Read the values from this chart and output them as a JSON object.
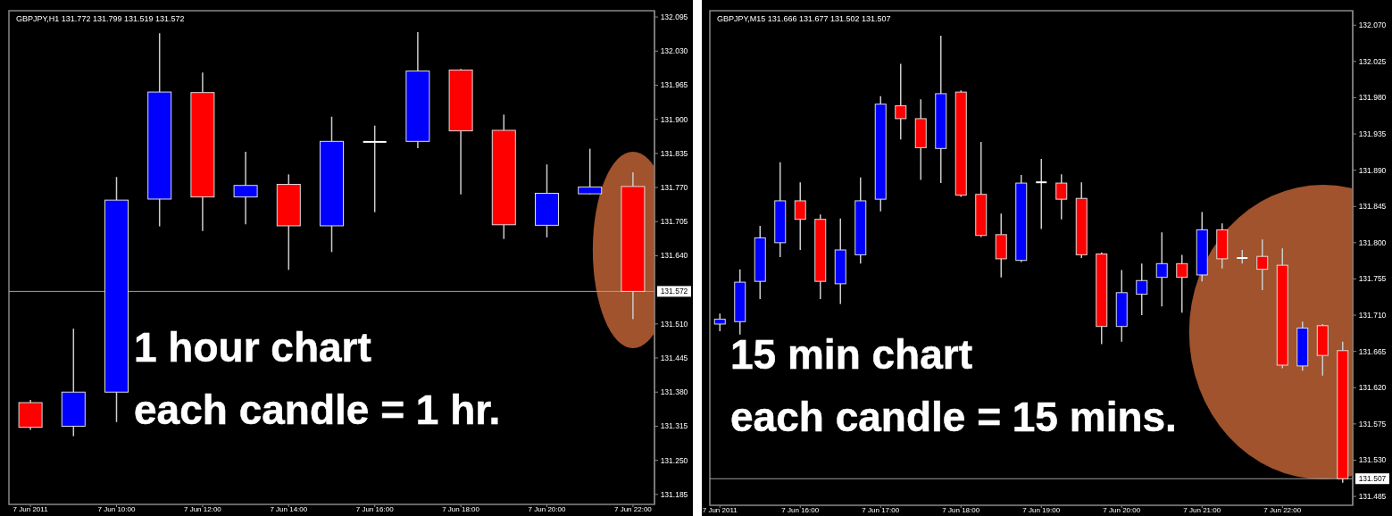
{
  "chart_data": [
    {
      "type": "candlestick",
      "title": "GBPJPY,H1 131.772 131.799 131.519 131.572",
      "categories": [
        "7 Jun 2011",
        null,
        "7 Jun 10:00",
        null,
        "7 Jun 12:00",
        null,
        "7 Jun 14:00",
        null,
        "7 Jun 16:00",
        null,
        "7 Jun 18:00",
        null,
        "7 Jun 20:00",
        null,
        "7 Jun 22:00"
      ],
      "ohlc": [
        [
          131.36,
          131.365,
          131.308,
          131.313
        ],
        [
          131.315,
          131.501,
          131.296,
          131.38
        ],
        [
          131.38,
          131.79,
          131.323,
          131.746
        ],
        [
          131.748,
          132.064,
          131.696,
          131.952
        ],
        [
          131.951,
          131.989,
          131.687,
          131.752
        ],
        [
          131.752,
          131.838,
          131.7,
          131.774
        ],
        [
          131.776,
          131.795,
          131.613,
          131.697
        ],
        [
          131.697,
          131.905,
          131.647,
          131.858
        ],
        [
          131.857,
          131.888,
          131.723,
          131.857
        ],
        [
          131.858,
          132.066,
          131.845,
          131.992
        ],
        [
          131.994,
          131.996,
          131.757,
          131.878
        ],
        [
          131.879,
          131.909,
          131.672,
          131.699
        ],
        [
          131.698,
          131.814,
          131.675,
          131.759
        ],
        [
          131.758,
          131.844,
          131.757,
          131.771
        ],
        [
          131.772,
          131.799,
          131.519,
          131.572
        ]
      ],
      "colors": [
        "#ff0000",
        "#0000ff",
        "#0000ff",
        "#0000ff",
        "#ff0000",
        "#0000ff",
        "#ff0000",
        "#0000ff",
        "#ffffff",
        "#0000ff",
        "#ff0000",
        "#ff0000",
        "#0000ff",
        "#0000ff",
        "#ff0000"
      ],
      "ylim": [
        131.166,
        132.107
      ],
      "yticks": [
        {
          "value": 132.095,
          "label": "132.095"
        },
        {
          "value": 132.03,
          "label": "132.030"
        },
        {
          "value": 131.965,
          "label": "131.965"
        },
        {
          "value": 131.9,
          "label": "131.900"
        },
        {
          "value": 131.835,
          "label": "131.835"
        },
        {
          "value": 131.77,
          "label": "131.770"
        },
        {
          "value": 131.705,
          "label": "131.705"
        },
        {
          "value": 131.64,
          "label": "131.640"
        },
        {
          "value": 131.51,
          "label": "131.510"
        },
        {
          "value": 131.445,
          "label": "131.445"
        },
        {
          "value": 131.38,
          "label": "131.380"
        },
        {
          "value": 131.315,
          "label": "131.315"
        },
        {
          "value": 131.25,
          "label": "131.250"
        },
        {
          "value": 131.185,
          "label": "131.185"
        }
      ],
      "ref_lines": [
        {
          "axis": "y",
          "value": 131.572,
          "label": "131.572",
          "color": "#a0a0a0"
        }
      ],
      "annotations": [
        "1 hour chart",
        "each candle = 1 hr."
      ]
    },
    {
      "type": "candlestick",
      "title": "GBPJPY,M15 131.666 131.677 131.502 131.507",
      "categories": [
        "7 Jun 2011",
        null,
        null,
        null,
        "7 Jun 16:00",
        null,
        null,
        null,
        "7 Jun 17:00",
        null,
        null,
        null,
        "7 Jun 18:00",
        null,
        null,
        null,
        "7 Jun 19:00",
        null,
        null,
        null,
        "7 Jun 20:00",
        null,
        null,
        null,
        "7 Jun 21:00",
        null,
        null,
        null,
        "7 Jun 22:00",
        null,
        null,
        null
      ],
      "ohlc": [
        [
          131.699,
          131.712,
          131.69,
          131.705
        ],
        [
          131.702,
          131.767,
          131.686,
          131.751
        ],
        [
          131.752,
          131.821,
          131.73,
          131.806
        ],
        [
          131.8,
          131.9,
          131.782,
          131.852
        ],
        [
          131.852,
          131.875,
          131.791,
          131.829
        ],
        [
          131.829,
          131.835,
          131.73,
          131.752
        ],
        [
          131.749,
          131.83,
          131.724,
          131.791
        ],
        [
          131.785,
          131.881,
          131.774,
          131.852
        ],
        [
          131.854,
          131.982,
          131.839,
          131.972
        ],
        [
          131.97,
          132.022,
          131.928,
          131.954
        ],
        [
          131.954,
          131.978,
          131.878,
          131.918
        ],
        [
          131.917,
          132.057,
          131.874,
          131.985
        ],
        [
          131.987,
          131.989,
          131.857,
          131.859
        ],
        [
          131.86,
          131.925,
          131.807,
          131.809
        ],
        [
          131.81,
          131.836,
          131.757,
          131.78
        ],
        [
          131.778,
          131.884,
          131.776,
          131.874
        ],
        [
          131.875,
          131.904,
          131.817,
          131.875
        ],
        [
          131.874,
          131.885,
          131.829,
          131.854
        ],
        [
          131.855,
          131.875,
          131.781,
          131.785
        ],
        [
          131.786,
          131.788,
          131.674,
          131.696
        ],
        [
          131.696,
          131.766,
          131.677,
          131.738
        ],
        [
          131.736,
          131.774,
          131.71,
          131.753
        ],
        [
          131.757,
          131.813,
          131.721,
          131.774
        ],
        [
          131.774,
          131.785,
          131.713,
          131.757
        ],
        [
          131.76,
          131.838,
          131.752,
          131.816
        ],
        [
          131.816,
          131.824,
          131.768,
          131.78
        ],
        [
          131.781,
          131.791,
          131.774,
          131.781
        ],
        [
          131.783,
          131.804,
          131.741,
          131.767
        ],
        [
          131.772,
          131.793,
          131.644,
          131.648
        ],
        [
          131.647,
          131.702,
          131.641,
          131.694
        ],
        [
          131.697,
          131.699,
          131.635,
          131.66
        ],
        [
          131.666,
          131.677,
          131.502,
          131.507
        ]
      ],
      "colors": [
        "#0000ff",
        "#0000ff",
        "#0000ff",
        "#0000ff",
        "#ff0000",
        "#ff0000",
        "#0000ff",
        "#0000ff",
        "#0000ff",
        "#ff0000",
        "#ff0000",
        "#0000ff",
        "#ff0000",
        "#ff0000",
        "#ff0000",
        "#0000ff",
        "#ffffff",
        "#ff0000",
        "#ff0000",
        "#ff0000",
        "#0000ff",
        "#0000ff",
        "#0000ff",
        "#ff0000",
        "#0000ff",
        "#ff0000",
        "#ffffff",
        "#ff0000",
        "#ff0000",
        "#0000ff",
        "#ff0000",
        "#ff0000"
      ],
      "ylim": [
        131.474,
        132.088
      ],
      "yticks": [
        {
          "value": 132.07,
          "label": "132.070"
        },
        {
          "value": 132.025,
          "label": "132.025"
        },
        {
          "value": 131.98,
          "label": "131.980"
        },
        {
          "value": 131.935,
          "label": "131.935"
        },
        {
          "value": 131.89,
          "label": "131.890"
        },
        {
          "value": 131.845,
          "label": "131.845"
        },
        {
          "value": 131.8,
          "label": "131.800"
        },
        {
          "value": 131.755,
          "label": "131.755"
        },
        {
          "value": 131.71,
          "label": "131.710"
        },
        {
          "value": 131.665,
          "label": "131.665"
        },
        {
          "value": 131.62,
          "label": "131.620"
        },
        {
          "value": 131.575,
          "label": "131.575"
        },
        {
          "value": 131.53,
          "label": "131.530"
        },
        {
          "value": 131.485,
          "label": "131.485"
        }
      ],
      "ref_lines": [
        {
          "axis": "y",
          "value": 131.507,
          "label": "131.507",
          "color": "#a0a0a0"
        }
      ],
      "annotations": [
        "15 min chart",
        "each candle = 15 mins."
      ]
    }
  ]
}
